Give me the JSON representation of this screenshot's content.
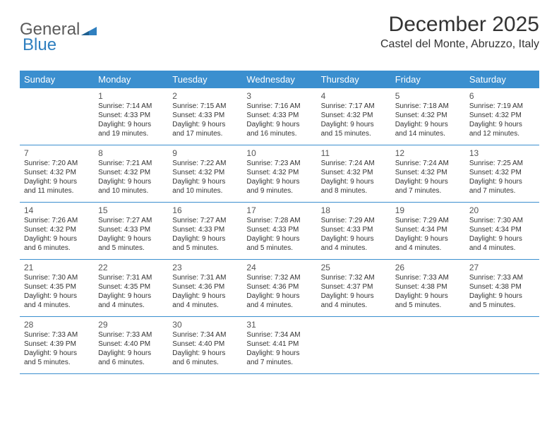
{
  "logo": {
    "text1": "General",
    "text2": "Blue"
  },
  "title": "December 2025",
  "location": "Castel del Monte, Abruzzo, Italy",
  "colors": {
    "header_bg": "#3b8fcf",
    "header_fg": "#ffffff",
    "divider": "#3b8fcf",
    "text": "#333333",
    "logo_gray": "#5b5b5b",
    "logo_blue": "#2f7fbf"
  },
  "day_headers": [
    "Sunday",
    "Monday",
    "Tuesday",
    "Wednesday",
    "Thursday",
    "Friday",
    "Saturday"
  ],
  "weeks": [
    [
      {
        "num": "",
        "sunrise": "",
        "sunset": "",
        "daylight": ""
      },
      {
        "num": "1",
        "sunrise": "Sunrise: 7:14 AM",
        "sunset": "Sunset: 4:33 PM",
        "daylight": "Daylight: 9 hours and 19 minutes."
      },
      {
        "num": "2",
        "sunrise": "Sunrise: 7:15 AM",
        "sunset": "Sunset: 4:33 PM",
        "daylight": "Daylight: 9 hours and 17 minutes."
      },
      {
        "num": "3",
        "sunrise": "Sunrise: 7:16 AM",
        "sunset": "Sunset: 4:33 PM",
        "daylight": "Daylight: 9 hours and 16 minutes."
      },
      {
        "num": "4",
        "sunrise": "Sunrise: 7:17 AM",
        "sunset": "Sunset: 4:32 PM",
        "daylight": "Daylight: 9 hours and 15 minutes."
      },
      {
        "num": "5",
        "sunrise": "Sunrise: 7:18 AM",
        "sunset": "Sunset: 4:32 PM",
        "daylight": "Daylight: 9 hours and 14 minutes."
      },
      {
        "num": "6",
        "sunrise": "Sunrise: 7:19 AM",
        "sunset": "Sunset: 4:32 PM",
        "daylight": "Daylight: 9 hours and 12 minutes."
      }
    ],
    [
      {
        "num": "7",
        "sunrise": "Sunrise: 7:20 AM",
        "sunset": "Sunset: 4:32 PM",
        "daylight": "Daylight: 9 hours and 11 minutes."
      },
      {
        "num": "8",
        "sunrise": "Sunrise: 7:21 AM",
        "sunset": "Sunset: 4:32 PM",
        "daylight": "Daylight: 9 hours and 10 minutes."
      },
      {
        "num": "9",
        "sunrise": "Sunrise: 7:22 AM",
        "sunset": "Sunset: 4:32 PM",
        "daylight": "Daylight: 9 hours and 10 minutes."
      },
      {
        "num": "10",
        "sunrise": "Sunrise: 7:23 AM",
        "sunset": "Sunset: 4:32 PM",
        "daylight": "Daylight: 9 hours and 9 minutes."
      },
      {
        "num": "11",
        "sunrise": "Sunrise: 7:24 AM",
        "sunset": "Sunset: 4:32 PM",
        "daylight": "Daylight: 9 hours and 8 minutes."
      },
      {
        "num": "12",
        "sunrise": "Sunrise: 7:24 AM",
        "sunset": "Sunset: 4:32 PM",
        "daylight": "Daylight: 9 hours and 7 minutes."
      },
      {
        "num": "13",
        "sunrise": "Sunrise: 7:25 AM",
        "sunset": "Sunset: 4:32 PM",
        "daylight": "Daylight: 9 hours and 7 minutes."
      }
    ],
    [
      {
        "num": "14",
        "sunrise": "Sunrise: 7:26 AM",
        "sunset": "Sunset: 4:32 PM",
        "daylight": "Daylight: 9 hours and 6 minutes."
      },
      {
        "num": "15",
        "sunrise": "Sunrise: 7:27 AM",
        "sunset": "Sunset: 4:33 PM",
        "daylight": "Daylight: 9 hours and 5 minutes."
      },
      {
        "num": "16",
        "sunrise": "Sunrise: 7:27 AM",
        "sunset": "Sunset: 4:33 PM",
        "daylight": "Daylight: 9 hours and 5 minutes."
      },
      {
        "num": "17",
        "sunrise": "Sunrise: 7:28 AM",
        "sunset": "Sunset: 4:33 PM",
        "daylight": "Daylight: 9 hours and 5 minutes."
      },
      {
        "num": "18",
        "sunrise": "Sunrise: 7:29 AM",
        "sunset": "Sunset: 4:33 PM",
        "daylight": "Daylight: 9 hours and 4 minutes."
      },
      {
        "num": "19",
        "sunrise": "Sunrise: 7:29 AM",
        "sunset": "Sunset: 4:34 PM",
        "daylight": "Daylight: 9 hours and 4 minutes."
      },
      {
        "num": "20",
        "sunrise": "Sunrise: 7:30 AM",
        "sunset": "Sunset: 4:34 PM",
        "daylight": "Daylight: 9 hours and 4 minutes."
      }
    ],
    [
      {
        "num": "21",
        "sunrise": "Sunrise: 7:30 AM",
        "sunset": "Sunset: 4:35 PM",
        "daylight": "Daylight: 9 hours and 4 minutes."
      },
      {
        "num": "22",
        "sunrise": "Sunrise: 7:31 AM",
        "sunset": "Sunset: 4:35 PM",
        "daylight": "Daylight: 9 hours and 4 minutes."
      },
      {
        "num": "23",
        "sunrise": "Sunrise: 7:31 AM",
        "sunset": "Sunset: 4:36 PM",
        "daylight": "Daylight: 9 hours and 4 minutes."
      },
      {
        "num": "24",
        "sunrise": "Sunrise: 7:32 AM",
        "sunset": "Sunset: 4:36 PM",
        "daylight": "Daylight: 9 hours and 4 minutes."
      },
      {
        "num": "25",
        "sunrise": "Sunrise: 7:32 AM",
        "sunset": "Sunset: 4:37 PM",
        "daylight": "Daylight: 9 hours and 4 minutes."
      },
      {
        "num": "26",
        "sunrise": "Sunrise: 7:33 AM",
        "sunset": "Sunset: 4:38 PM",
        "daylight": "Daylight: 9 hours and 5 minutes."
      },
      {
        "num": "27",
        "sunrise": "Sunrise: 7:33 AM",
        "sunset": "Sunset: 4:38 PM",
        "daylight": "Daylight: 9 hours and 5 minutes."
      }
    ],
    [
      {
        "num": "28",
        "sunrise": "Sunrise: 7:33 AM",
        "sunset": "Sunset: 4:39 PM",
        "daylight": "Daylight: 9 hours and 5 minutes."
      },
      {
        "num": "29",
        "sunrise": "Sunrise: 7:33 AM",
        "sunset": "Sunset: 4:40 PM",
        "daylight": "Daylight: 9 hours and 6 minutes."
      },
      {
        "num": "30",
        "sunrise": "Sunrise: 7:34 AM",
        "sunset": "Sunset: 4:40 PM",
        "daylight": "Daylight: 9 hours and 6 minutes."
      },
      {
        "num": "31",
        "sunrise": "Sunrise: 7:34 AM",
        "sunset": "Sunset: 4:41 PM",
        "daylight": "Daylight: 9 hours and 7 minutes."
      },
      {
        "num": "",
        "sunrise": "",
        "sunset": "",
        "daylight": ""
      },
      {
        "num": "",
        "sunrise": "",
        "sunset": "",
        "daylight": ""
      },
      {
        "num": "",
        "sunrise": "",
        "sunset": "",
        "daylight": ""
      }
    ]
  ]
}
